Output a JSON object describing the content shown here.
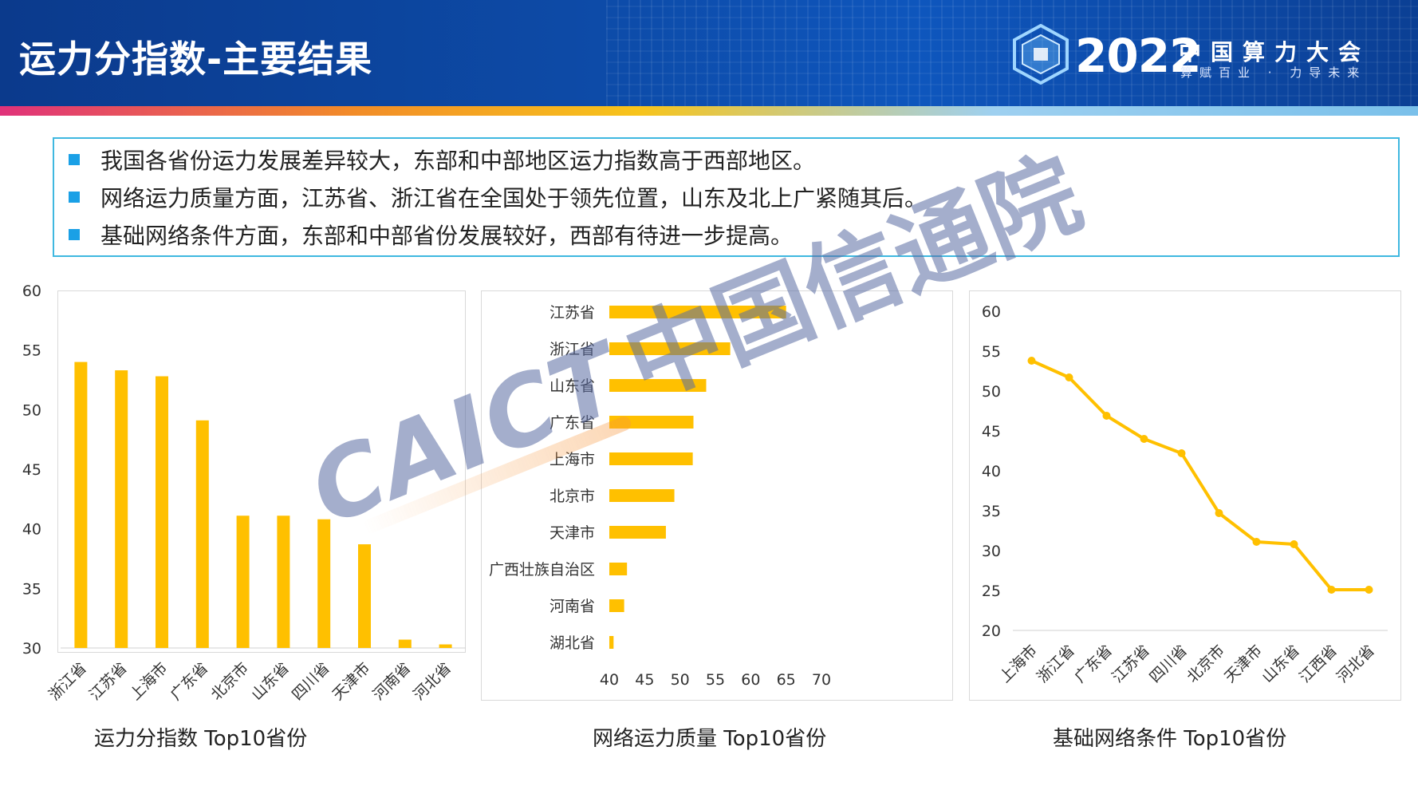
{
  "header": {
    "title": "运力分指数-主要结果",
    "logo_year": "2022",
    "logo_cn": "中国算力大会",
    "logo_slogan": "算赋百业 · 力导未来"
  },
  "bullets": [
    "我国各省份运力发展差异较大，东部和中部地区运力指数高于西部地区。",
    "网络运力质量方面，江苏省、浙江省在全国处于领先位置，山东及北上广紧随其后。",
    "基础网络条件方面，东部和中部省份发展较好，西部有待进一步提高。"
  ],
  "watermark": {
    "en": "CAICT",
    "cn": "中国信通院"
  },
  "colors": {
    "accent": "#FFC000",
    "bullet": "#1aa0e6",
    "header": "#0d4aa6"
  },
  "chart_data": [
    {
      "type": "bar",
      "caption": "运力分指数 Top10省份",
      "categories": [
        "浙江省",
        "江苏省",
        "上海市",
        "广东省",
        "北京市",
        "山东省",
        "四川省",
        "天津市",
        "河南省",
        "河北省"
      ],
      "values": [
        54.0,
        53.3,
        52.8,
        49.1,
        41.1,
        41.1,
        40.8,
        38.7,
        30.7,
        30.3
      ],
      "ylim": [
        30,
        60
      ],
      "yticks": [
        30,
        35,
        40,
        45,
        50,
        55,
        60
      ],
      "grid": false
    },
    {
      "type": "bar",
      "orientation": "horizontal",
      "caption": "网络运力质量 Top10省份",
      "categories": [
        "江苏省",
        "浙江省",
        "山东省",
        "广东省",
        "上海市",
        "北京市",
        "天津市",
        "广西壮族自治区",
        "河南省",
        "湖北省"
      ],
      "values": [
        65.0,
        57.1,
        53.7,
        51.9,
        51.8,
        49.2,
        48.0,
        42.5,
        42.1,
        40.6
      ],
      "xlim": [
        40,
        70
      ],
      "xticks": [
        40,
        45,
        50,
        55,
        60,
        65,
        70
      ],
      "grid": false
    },
    {
      "type": "line",
      "caption": "基础网络条件 Top10省份",
      "categories": [
        "上海市",
        "浙江省",
        "广东省",
        "江苏省",
        "四川省",
        "北京市",
        "天津市",
        "山东省",
        "江西省",
        "河北省"
      ],
      "values": [
        53.8,
        51.7,
        46.9,
        44.0,
        42.2,
        34.7,
        31.1,
        30.8,
        25.1,
        25.1
      ],
      "ylim": [
        20,
        60
      ],
      "yticks": [
        20,
        25,
        30,
        35,
        40,
        45,
        50,
        55,
        60
      ],
      "grid": false
    }
  ]
}
